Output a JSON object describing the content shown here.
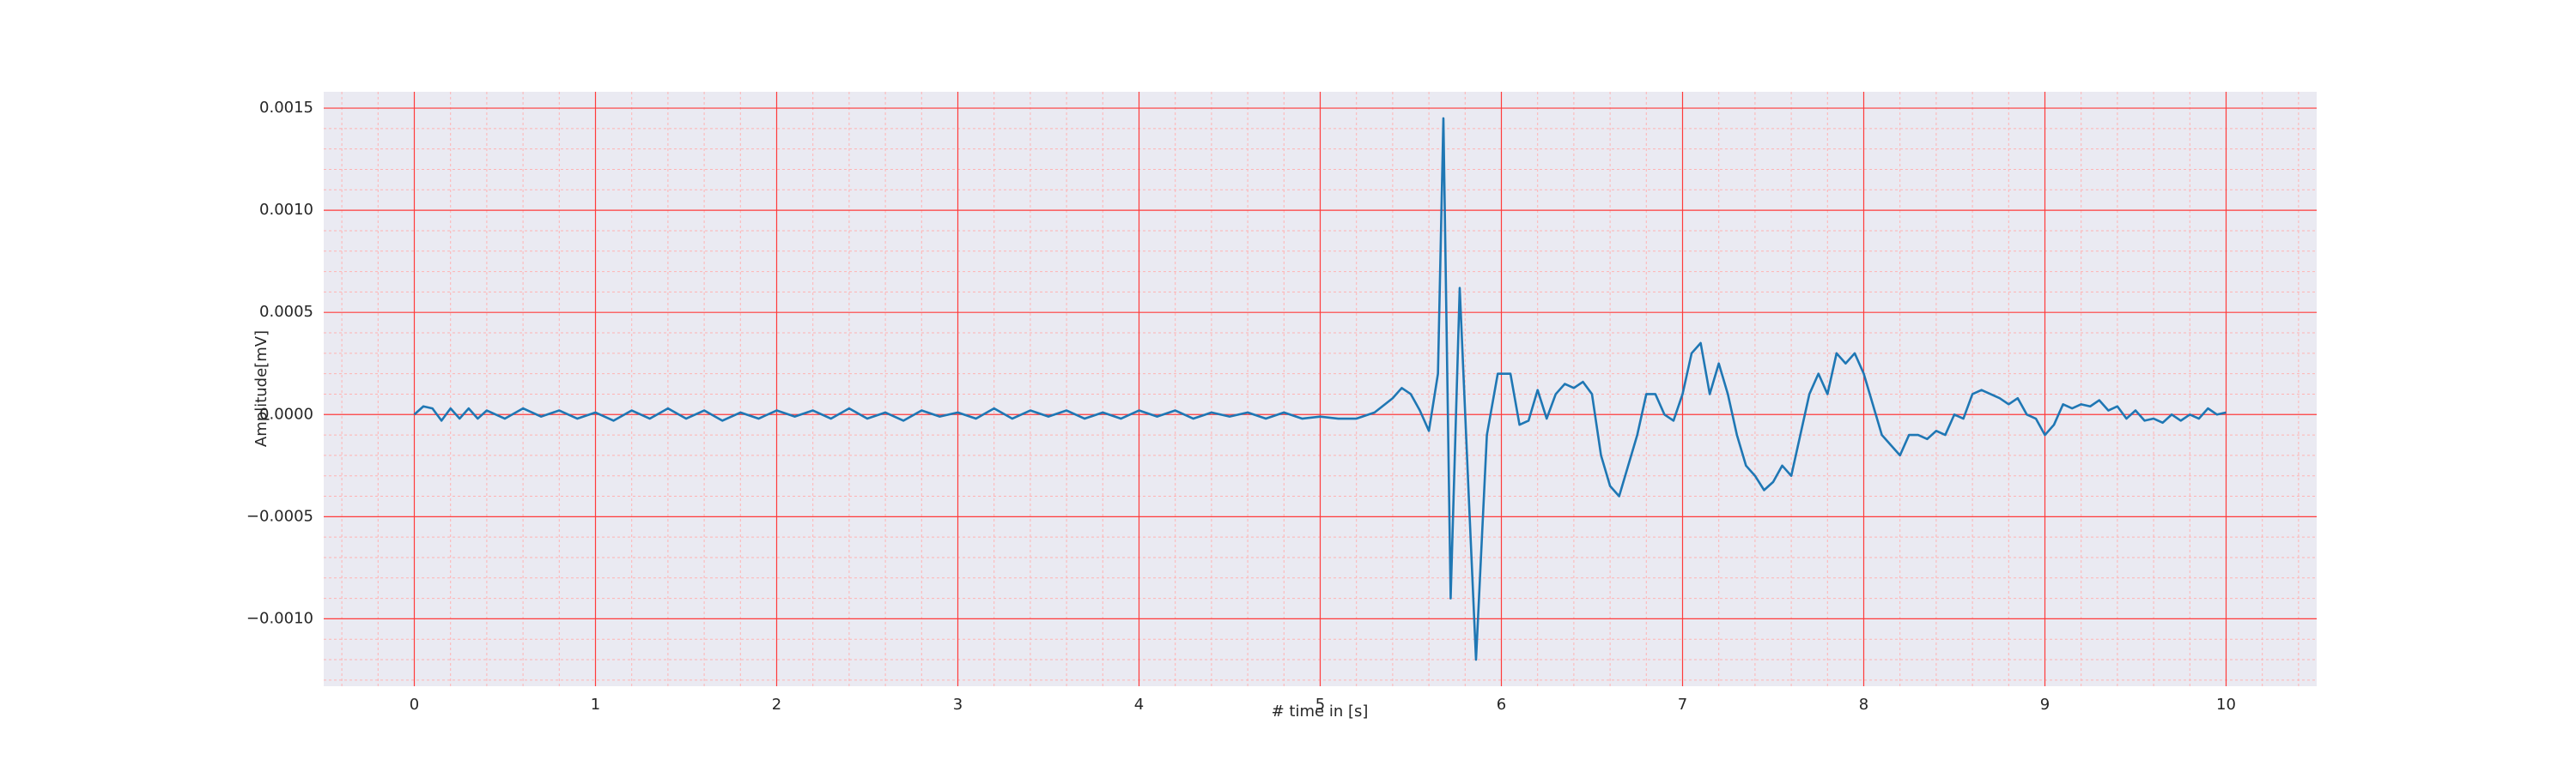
{
  "chart_data": {
    "type": "line",
    "xlabel": "# time in [s]",
    "ylabel": "Amplitude[mV]",
    "color": "#1f77b4",
    "grid": true,
    "xlim": [
      -0.5,
      10.5
    ],
    "ylim": [
      -0.00133,
      0.00158
    ],
    "xticks": [
      0,
      1,
      2,
      3,
      4,
      5,
      6,
      7,
      8,
      9,
      10
    ],
    "yticks": [
      {
        "value": -0.001,
        "label": "−0.0010"
      },
      {
        "value": -0.0005,
        "label": "−0.0005"
      },
      {
        "value": 0,
        "label": "0.0000"
      },
      0.0005,
      {
        "value": 0.001,
        "label": "0.0010"
      },
      0.0015
    ],
    "xminorticks": [
      -0.4,
      -0.2,
      0.2,
      0.4,
      0.6,
      0.8,
      1.2,
      1.4,
      1.6,
      1.8,
      2.2,
      2.4,
      2.6,
      2.8,
      3.2,
      3.4,
      3.6,
      3.8,
      4.2,
      4.4,
      4.6,
      4.8,
      5.2,
      5.4,
      5.6,
      5.8,
      6.2,
      6.4,
      6.6,
      6.8,
      7.2,
      7.4,
      7.6,
      7.8,
      8.2,
      8.4,
      8.6,
      8.8,
      9.2,
      9.4,
      9.6,
      9.8,
      10.2,
      10.4
    ],
    "yminorticks": [
      -0.0013,
      -0.0012,
      -0.0011,
      -0.0009,
      -0.0008,
      -0.0007,
      -0.0006,
      -0.0004,
      -0.0003,
      -0.0002,
      -0.0001,
      0.0001,
      0.0002,
      0.0003,
      0.0004,
      0.0006,
      0.0007,
      0.0008,
      0.0009,
      0.0011,
      0.0012,
      0.0013,
      0.0014
    ],
    "x": [
      0,
      0.05,
      0.1,
      0.15,
      0.2,
      0.25,
      0.3,
      0.35,
      0.4,
      0.5,
      0.6,
      0.7,
      0.8,
      0.9,
      1.0,
      1.1,
      1.2,
      1.3,
      1.4,
      1.5,
      1.6,
      1.7,
      1.8,
      1.9,
      2.0,
      2.1,
      2.2,
      2.3,
      2.4,
      2.5,
      2.6,
      2.7,
      2.8,
      2.9,
      3.0,
      3.1,
      3.2,
      3.3,
      3.4,
      3.5,
      3.6,
      3.7,
      3.8,
      3.9,
      4.0,
      4.1,
      4.2,
      4.3,
      4.4,
      4.5,
      4.6,
      4.7,
      4.8,
      4.9,
      5.0,
      5.1,
      5.2,
      5.3,
      5.4,
      5.45,
      5.5,
      5.55,
      5.6,
      5.65,
      5.68,
      5.72,
      5.77,
      5.82,
      5.86,
      5.92,
      5.98,
      6.05,
      6.1,
      6.15,
      6.2,
      6.25,
      6.3,
      6.35,
      6.4,
      6.45,
      6.5,
      6.55,
      6.6,
      6.65,
      6.7,
      6.75,
      6.8,
      6.85,
      6.9,
      6.95,
      7.0,
      7.05,
      7.1,
      7.15,
      7.2,
      7.25,
      7.3,
      7.35,
      7.4,
      7.45,
      7.5,
      7.55,
      7.6,
      7.65,
      7.7,
      7.75,
      7.8,
      7.85,
      7.9,
      7.95,
      8.0,
      8.05,
      8.1,
      8.15,
      8.2,
      8.25,
      8.3,
      8.35,
      8.4,
      8.45,
      8.5,
      8.55,
      8.6,
      8.65,
      8.7,
      8.75,
      8.8,
      8.85,
      8.9,
      8.95,
      9.0,
      9.05,
      9.1,
      9.15,
      9.2,
      9.25,
      9.3,
      9.35,
      9.4,
      9.45,
      9.5,
      9.55,
      9.6,
      9.65,
      9.7,
      9.75,
      9.8,
      9.85,
      9.9,
      9.95,
      10.0
    ],
    "values": [
      0,
      4e-05,
      3e-05,
      -3e-05,
      3e-05,
      -2e-05,
      3e-05,
      -2e-05,
      2e-05,
      -2e-05,
      3e-05,
      -1e-05,
      2e-05,
      -2e-05,
      1e-05,
      -3e-05,
      2e-05,
      -2e-05,
      3e-05,
      -2e-05,
      2e-05,
      -3e-05,
      1e-05,
      -2e-05,
      2e-05,
      -1e-05,
      2e-05,
      -2e-05,
      3e-05,
      -2e-05,
      1e-05,
      -3e-05,
      2e-05,
      -1e-05,
      1e-05,
      -2e-05,
      3e-05,
      -2e-05,
      2e-05,
      -1e-05,
      2e-05,
      -2e-05,
      1e-05,
      -2e-05,
      2e-05,
      -1e-05,
      2e-05,
      -2e-05,
      1e-05,
      -1e-05,
      1e-05,
      -2e-05,
      1e-05,
      -2e-05,
      -1e-05,
      -2e-05,
      -2e-05,
      1e-05,
      8e-05,
      0.00013,
      0.0001,
      2e-05,
      -8e-05,
      0.0002,
      0.00145,
      -0.0009,
      0.00062,
      -0.0004,
      -0.0012,
      -0.0001,
      0.0002,
      0.0002,
      -5e-05,
      -3e-05,
      0.00012,
      -2e-05,
      0.0001,
      0.00015,
      0.00013,
      0.00016,
      0.0001,
      -0.0002,
      -0.00035,
      -0.0004,
      -0.00025,
      -0.0001,
      0.0001,
      0.0001,
      0.0,
      -3e-05,
      0.0001,
      0.0003,
      0.00035,
      0.0001,
      0.00025,
      0.0001,
      -0.0001,
      -0.00025,
      -0.0003,
      -0.00037,
      -0.00033,
      -0.00025,
      -0.0003,
      -0.0001,
      0.0001,
      0.0002,
      0.0001,
      0.0003,
      0.00025,
      0.0003,
      0.0002,
      5e-05,
      -0.0001,
      -0.00015,
      -0.0002,
      -0.0001,
      -0.0001,
      -0.00012,
      -8e-05,
      -0.0001,
      0.0,
      -2e-05,
      0.0001,
      0.00012,
      0.0001,
      8e-05,
      5e-05,
      8e-05,
      0.0,
      -2e-05,
      -0.0001,
      -5e-05,
      5e-05,
      3e-05,
      5e-05,
      4e-05,
      7e-05,
      2e-05,
      4e-05,
      -2e-05,
      2e-05,
      -3e-05,
      -2e-05,
      -4e-05,
      0.0,
      -3e-05,
      0.0,
      -2e-05,
      3e-05,
      0.0,
      1e-05
    ]
  }
}
